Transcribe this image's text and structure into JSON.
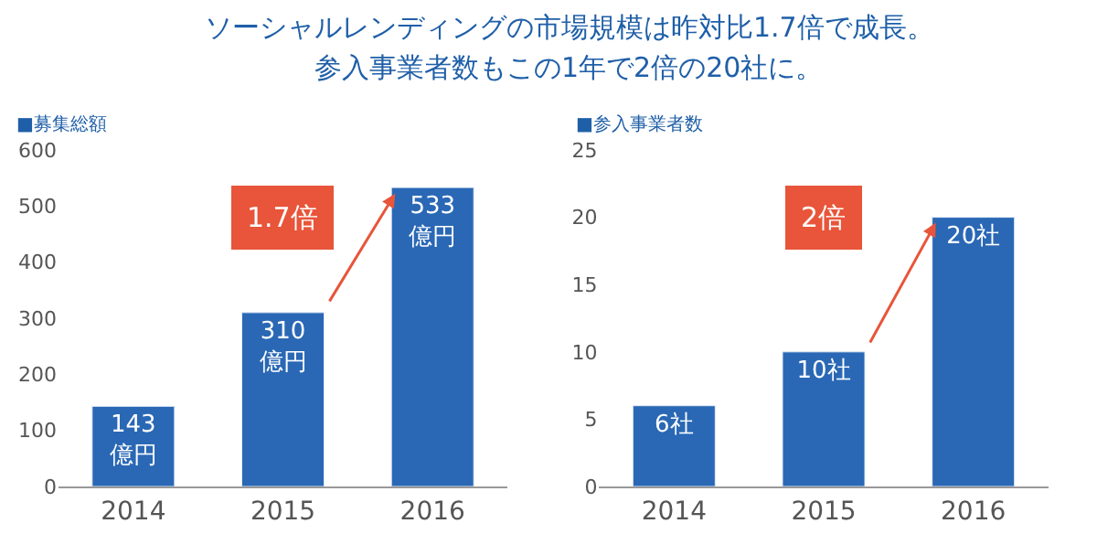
{
  "chart_data": [
    {
      "type": "bar",
      "title": "ソーシャルレンディングの市場規模は昨対比1.7倍で成長。",
      "subtitle": "参入事業者数もこの1年で2倍の20社に。",
      "categories": [
        "2014",
        "2015",
        "2016"
      ],
      "values": [
        143,
        310,
        533
      ],
      "color": "#2a68b5",
      "value_labels": [
        "143\n億円",
        "310\n億円",
        "533\n億円"
      ],
      "ylim": [
        0,
        600
      ],
      "yticks": [
        0,
        100,
        200,
        300,
        400,
        500,
        600
      ],
      "annotations": [
        "■募集総額",
        "1.7倍"
      ]
    },
    {
      "type": "bar",
      "categories": [
        "2014",
        "2015",
        "2016"
      ],
      "values": [
        6,
        10,
        20
      ],
      "color": "#2a68b5",
      "value_labels": [
        "6社",
        "10社",
        "20社"
      ],
      "ylim": [
        0,
        25
      ],
      "yticks": [
        0,
        5,
        10,
        15,
        20,
        25
      ],
      "annotations": [
        "■参入事業者数",
        "2倍"
      ]
    }
  ]
}
